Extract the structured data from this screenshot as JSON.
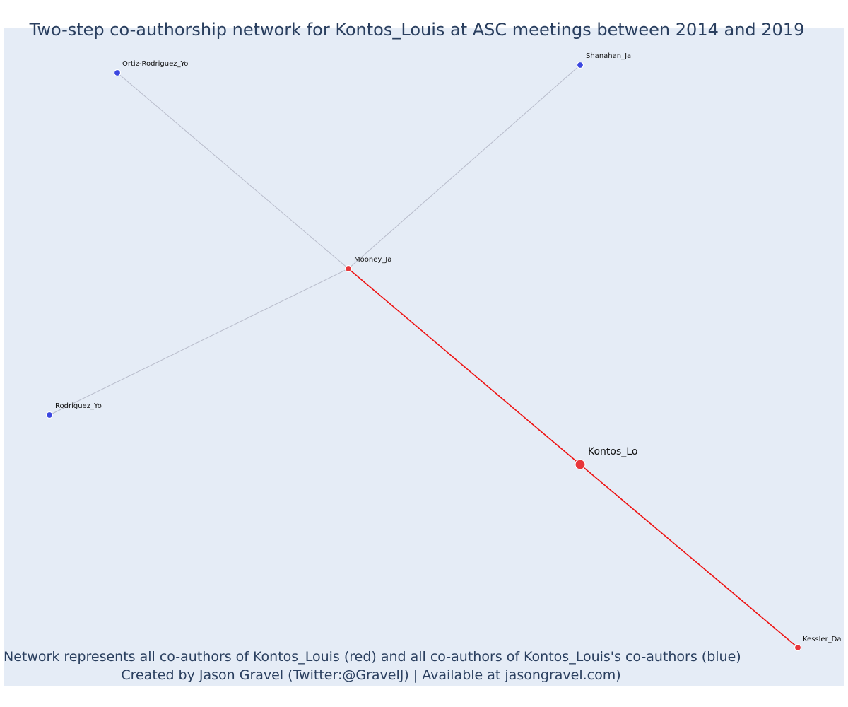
{
  "title": "Two-step co-authorship network for Kontos_Louis at ASC meetings between 2014 and 2019",
  "caption": {
    "line1": "Network represents all co-authors of Kontos_Louis (red) and all co-authors of Kontos_Louis's co-authors (blue)",
    "line2": "Created by Jason Gravel (Twitter:@GravelJ) | Available at jasongravel.com)"
  },
  "colors": {
    "background": "#e5ecf6",
    "direct_edge": "#ee1111",
    "indirect_edge": "#b8bccb",
    "direct_node": "#e8363a",
    "indirect_node": "#3b47e0",
    "title_text": "#2a3f5f"
  },
  "nodes": [
    {
      "id": "kontos",
      "label": "Kontos_Lo",
      "group": "focal"
    },
    {
      "id": "mooney",
      "label": "Mooney_Ja",
      "group": "coauthor"
    },
    {
      "id": "kessler",
      "label": "Kessler_Da",
      "group": "coauthor"
    },
    {
      "id": "ortiz",
      "label": "Ortiz-Rodriguez_Yo",
      "group": "second-step"
    },
    {
      "id": "shanahan",
      "label": "Shanahan_Ja",
      "group": "second-step"
    },
    {
      "id": "rodriguez",
      "label": "Rodriguez_Yo",
      "group": "second-step"
    }
  ],
  "edges": [
    {
      "source": "kontos",
      "target": "mooney",
      "type": "direct"
    },
    {
      "source": "kontos",
      "target": "kessler",
      "type": "direct"
    },
    {
      "source": "mooney",
      "target": "ortiz",
      "type": "indirect"
    },
    {
      "source": "mooney",
      "target": "shanahan",
      "type": "indirect"
    },
    {
      "source": "mooney",
      "target": "rodriguez",
      "type": "indirect"
    }
  ]
}
